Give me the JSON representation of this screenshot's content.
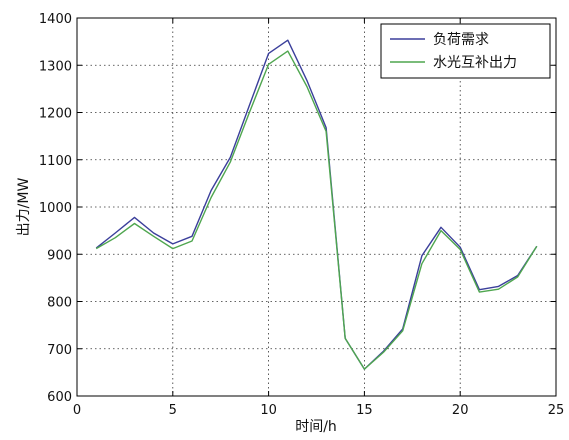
{
  "chart_data": {
    "type": "line",
    "title": "",
    "xlabel": "时间/h",
    "ylabel": "出力/MW",
    "xlim": [
      0,
      25
    ],
    "ylim": [
      600,
      1400
    ],
    "xticks": [
      0,
      5,
      10,
      15,
      20,
      25
    ],
    "yticks": [
      600,
      700,
      800,
      900,
      1000,
      1100,
      1200,
      1300,
      1400
    ],
    "grid": true,
    "legend_position": "top-right",
    "x": [
      1,
      2,
      3,
      4,
      5,
      6,
      7,
      8,
      9,
      10,
      11,
      12,
      13,
      14,
      15,
      16,
      17,
      18,
      19,
      20,
      21,
      22,
      23,
      24
    ],
    "series": [
      {
        "name": "负荷需求",
        "color": "#3b3f9b",
        "values": [
          913,
          945,
          978,
          945,
          922,
          938,
          1035,
          1105,
          1215,
          1325,
          1353,
          1268,
          1168,
          722,
          657,
          695,
          742,
          897,
          957,
          915,
          825,
          832,
          855,
          917
        ]
      },
      {
        "name": "水光互补出力",
        "color": "#4fa64f",
        "values": [
          912,
          935,
          965,
          938,
          912,
          928,
          1020,
          1095,
          1200,
          1302,
          1330,
          1255,
          1160,
          722,
          657,
          693,
          738,
          880,
          950,
          910,
          820,
          826,
          852,
          917
        ]
      }
    ]
  }
}
